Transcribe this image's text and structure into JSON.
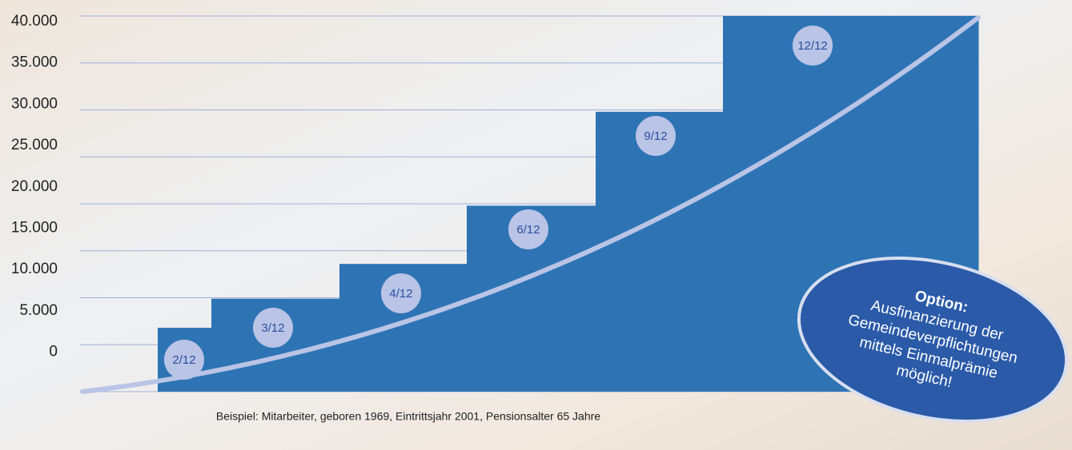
{
  "chart_data": {
    "type": "step-bar",
    "categories": [
      "2/12",
      "3/12",
      "4/12",
      "6/12",
      "9/12",
      "12/12"
    ],
    "values": [
      6800,
      9900,
      13600,
      19800,
      29800,
      40000
    ],
    "color": "#2e74b5",
    "ylim": [
      0,
      40000
    ],
    "yticks": [
      0,
      {
        "value": 5000,
        "label": "5.000"
      },
      {
        "value": 10000,
        "label": "10.000"
      },
      {
        "value": 15000,
        "label": "15.000"
      },
      {
        "value": 20000,
        "label": "20.000"
      },
      {
        "value": 25000,
        "label": "25.000"
      },
      {
        "value": 30000,
        "label": "30.000"
      },
      {
        "value": 35000,
        "label": "35.000"
      },
      {
        "value": 40000,
        "label": "40.000"
      }
    ],
    "grid": true,
    "footnote": "Beispiel: Mitarbeiter, geboren 1969, Eintrittsjahr 2001, Pensionsalter 65 Jahre",
    "badge": {
      "title": "Option:",
      "lines": [
        "Ausfinanzierung der",
        "Gemeindeverpflichtungen",
        "mittels Einmalprämie",
        "möglich!"
      ]
    }
  }
}
